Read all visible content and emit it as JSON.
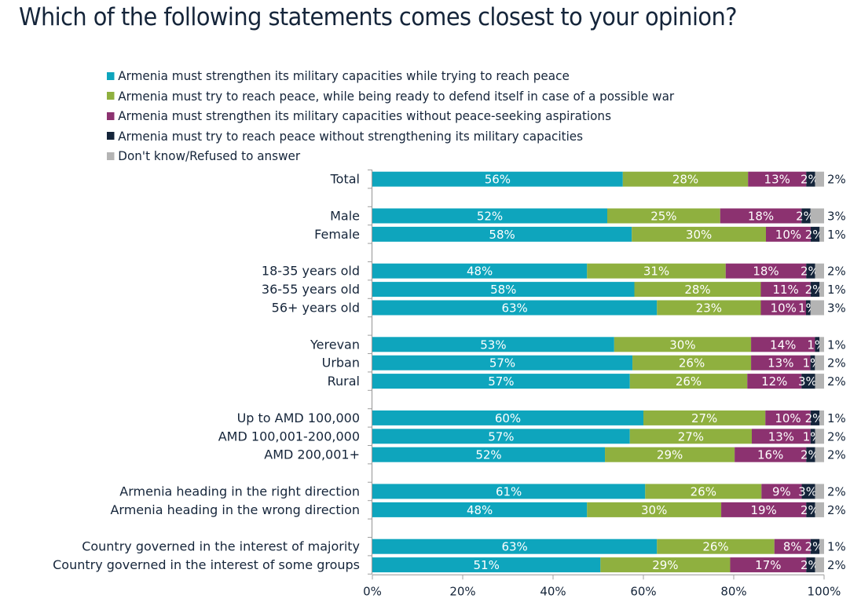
{
  "chart_data": {
    "type": "bar",
    "orientation": "horizontal",
    "stacked": true,
    "title": "Which of the following statements comes closest to your opinion?",
    "xlabel": "",
    "ylabel": "",
    "xlim": [
      0,
      100
    ],
    "x_ticks": [
      "0%",
      "20%",
      "40%",
      "60%",
      "80%",
      "100%"
    ],
    "grid": false,
    "legend_position": "top",
    "series": [
      {
        "name": "Armenia must strengthen its military capacities while trying to reach peace",
        "color": "#0ea5bd"
      },
      {
        "name": "Armenia must try to reach peace, while being ready to defend itself in case of a possible war",
        "color": "#8fb03f"
      },
      {
        "name": "Armenia must strengthen its military capacities without peace-seeking aspirations",
        "color": "#8c3270"
      },
      {
        "name": "Armenia must try to reach peace without strengthening its military capacities",
        "color": "#14243a"
      },
      {
        "name": "Don't know/Refused to answer",
        "color": "#b4b4b4"
      }
    ],
    "categories": [
      {
        "label": "Total",
        "values": [
          56,
          28,
          13,
          2,
          2
        ],
        "group": 0
      },
      {
        "label": "Male",
        "values": [
          52,
          25,
          18,
          2,
          3
        ],
        "group": 1
      },
      {
        "label": "Female",
        "values": [
          58,
          30,
          10,
          2,
          1
        ],
        "group": 1
      },
      {
        "label": "18-35 years old",
        "values": [
          48,
          31,
          18,
          2,
          2
        ],
        "group": 2
      },
      {
        "label": "36-55 years old",
        "values": [
          58,
          28,
          11,
          2,
          1
        ],
        "group": 2
      },
      {
        "label": "56+ years old",
        "values": [
          63,
          23,
          10,
          1,
          3
        ],
        "group": 2
      },
      {
        "label": "Yerevan",
        "values": [
          53,
          30,
          14,
          1,
          1
        ],
        "group": 3
      },
      {
        "label": "Urban",
        "values": [
          57,
          26,
          13,
          1,
          2
        ],
        "group": 3
      },
      {
        "label": "Rural",
        "values": [
          57,
          26,
          12,
          3,
          2
        ],
        "group": 3
      },
      {
        "label": "Up to AMD 100,000",
        "values": [
          60,
          27,
          10,
          2,
          1
        ],
        "group": 4
      },
      {
        "label": "AMD 100,001-200,000",
        "values": [
          57,
          27,
          13,
          1,
          2
        ],
        "group": 4
      },
      {
        "label": "AMD 200,001+",
        "values": [
          52,
          29,
          16,
          2,
          2
        ],
        "group": 4
      },
      {
        "label": "Armenia heading in the right direction",
        "values": [
          61,
          26,
          9,
          3,
          2
        ],
        "group": 5
      },
      {
        "label": "Armenia heading in the wrong direction",
        "values": [
          48,
          30,
          19,
          2,
          2
        ],
        "group": 5
      },
      {
        "label": "Country governed in the interest of majority",
        "values": [
          63,
          26,
          8,
          2,
          1
        ],
        "group": 6
      },
      {
        "label": "Country governed in the interest of some groups",
        "values": [
          51,
          29,
          17,
          2,
          2
        ],
        "group": 6
      }
    ]
  }
}
